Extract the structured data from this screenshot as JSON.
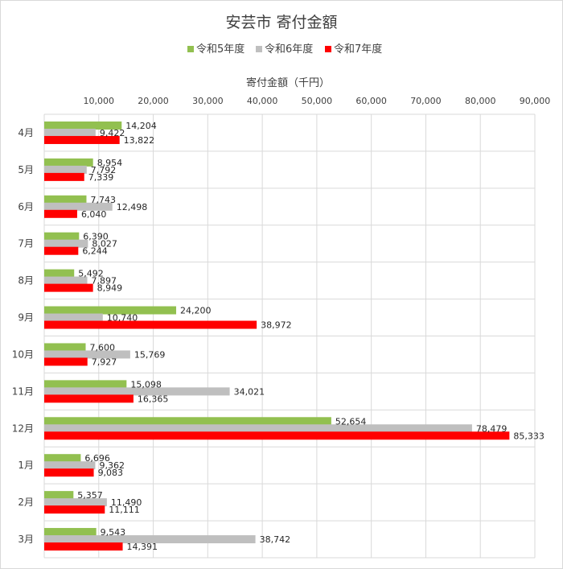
{
  "chart_data": {
    "type": "bar",
    "orientation": "horizontal",
    "title": "安芸市 寄付金額",
    "xlabel": "寄付金額（千円）",
    "ylabel": "",
    "categories": [
      "4月",
      "5月",
      "6月",
      "7月",
      "8月",
      "9月",
      "10月",
      "11月",
      "12月",
      "1月",
      "2月",
      "3月"
    ],
    "series": [
      {
        "name": "令和5年度",
        "color": "#92c050",
        "values": [
          14204,
          8954,
          7743,
          6390,
          5492,
          24200,
          7600,
          15098,
          52654,
          6696,
          5357,
          9543
        ]
      },
      {
        "name": "令和6年度",
        "color": "#bfbfbf",
        "values": [
          9422,
          7792,
          12498,
          8027,
          7897,
          10740,
          15769,
          34021,
          78479,
          9362,
          11490,
          38742
        ]
      },
      {
        "name": "令和7年度",
        "color": "#ff0000",
        "values": [
          13822,
          7339,
          6040,
          6244,
          8949,
          38972,
          7927,
          16365,
          85333,
          9083,
          11111,
          14391
        ]
      }
    ],
    "xlim": [
      0,
      90000
    ],
    "xticks": [
      10000,
      20000,
      30000,
      40000,
      50000,
      60000,
      70000,
      80000,
      90000
    ],
    "xtick_labels": [
      "10,000",
      "20,000",
      "30,000",
      "40,000",
      "50,000",
      "60,000",
      "70,000",
      "80,000",
      "90,000"
    ],
    "x_axis_position": "top",
    "grid": true,
    "legend_position": "top",
    "data_labels": true
  }
}
